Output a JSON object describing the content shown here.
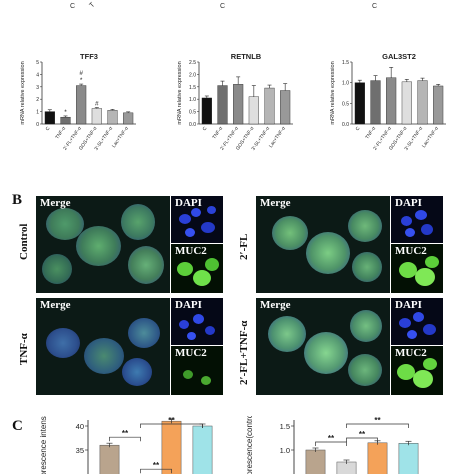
{
  "figure": {
    "panel_b_letter": "B",
    "panel_c_letter": "C",
    "panel_b": {
      "conditions": [
        "Control",
        "TNF-α",
        "2ʹ-FL",
        "2ʹ-FL+TNF-α"
      ],
      "channel_labels": {
        "merge": "Merge",
        "dapi": "DAPI",
        "muc2": "MUC2"
      }
    }
  },
  "chart_data": [
    {
      "type": "bar",
      "title": "",
      "xlabel": "",
      "ylabel": "mRNA relative expression",
      "categories": [
        "C",
        "TNF-α",
        "2ʹ-FL+TNF-α",
        "GOS+TNF-α",
        "3ʹ-SL+TNF-α",
        "Lac+TNF-α"
      ],
      "series": [
        {
          "name": "TFF3",
          "values": [
            1.0,
            0.55,
            3.1,
            1.25,
            1.1,
            0.9
          ]
        }
      ],
      "errors": [
        0.15,
        0.1,
        0.12,
        0.08,
        0.08,
        0.08
      ],
      "annotations": [
        "",
        "*",
        "#\n*",
        "#",
        "",
        ""
      ],
      "ylim": [
        0,
        5
      ],
      "yticks": [
        0,
        1,
        2,
        3,
        4,
        5
      ],
      "gene_label": "TFF3"
    },
    {
      "type": "bar",
      "title": "",
      "xlabel": "",
      "ylabel": "mRNA relative expression",
      "categories": [
        "C",
        "TNF-α",
        "2ʹ-FL+TNF-α",
        "GOS+TNF-α",
        "3ʹ-SL+TNF-α",
        "Lac+TNF-α"
      ],
      "series": [
        {
          "name": "RETNLB",
          "values": [
            1.05,
            1.55,
            1.6,
            1.1,
            1.45,
            1.35
          ]
        }
      ],
      "errors": [
        0.08,
        0.18,
        0.3,
        0.45,
        0.12,
        0.28
      ],
      "annotations": [
        "",
        "",
        "",
        "",
        "",
        ""
      ],
      "ylim": [
        0,
        2.5
      ],
      "yticks": [
        0.0,
        0.5,
        1.0,
        1.5,
        2.0,
        2.5
      ],
      "gene_label": "RETNLB"
    },
    {
      "type": "bar",
      "title": "",
      "xlabel": "",
      "ylabel": "mRNA relative expression",
      "categories": [
        "C",
        "TNF-α",
        "2ʹ-FL+TNF-α",
        "GOS+TNF-α",
        "3ʹ-SL+TNF-α",
        "Lac+TNF-α"
      ],
      "series": [
        {
          "name": "GAL3ST2",
          "values": [
            1.0,
            1.05,
            1.12,
            1.02,
            1.05,
            0.92
          ]
        }
      ],
      "errors": [
        0.06,
        0.12,
        0.25,
        0.06,
        0.06,
        0.04
      ],
      "annotations": [
        "",
        "",
        "",
        "",
        "",
        ""
      ],
      "ylim": [
        0,
        1.5
      ],
      "yticks": [
        0.0,
        0.5,
        1.0,
        1.5
      ],
      "gene_label": "GAL3ST2"
    },
    {
      "type": "bar",
      "title": "",
      "ylabel": "Fluorescence intensity",
      "categories": [
        "C",
        "TNF-α",
        "2ʹ-FL",
        "2ʹ-FL+TNF-α"
      ],
      "series": [
        {
          "name": "",
          "values": [
            36,
            26,
            41,
            40
          ]
        }
      ],
      "colors": [
        "#b9a48d",
        "#d9d9d9",
        "#f4a259",
        "#9fe3e8"
      ],
      "annotations": [
        "**",
        "**",
        "**"
      ],
      "ylim": [
        0,
        50
      ],
      "yticks": [
        35,
        40
      ]
    },
    {
      "type": "bar",
      "title": "",
      "ylabel": "Fluorescence(control)",
      "categories": [
        "C",
        "TNF-α",
        "2ʹ-FL",
        "2ʹ-FL+TNF-α"
      ],
      "series": [
        {
          "name": "",
          "values": [
            1.0,
            0.75,
            1.15,
            1.14
          ]
        }
      ],
      "colors": [
        "#b9a48d",
        "#d9d9d9",
        "#f4a259",
        "#9fe3e8"
      ],
      "annotations": [
        "**",
        "**",
        "**"
      ],
      "ylim": [
        0,
        1.5
      ],
      "yticks": [
        1.0,
        1.5
      ]
    }
  ]
}
